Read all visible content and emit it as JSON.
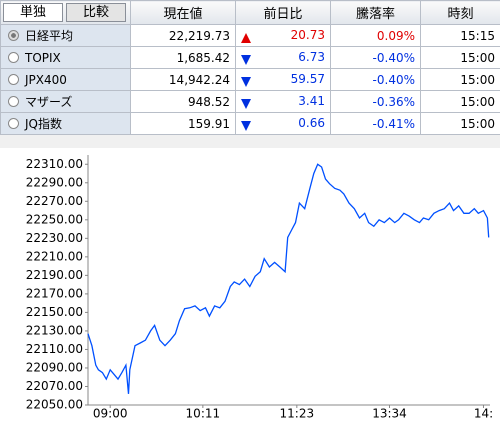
{
  "table": {
    "tabs": [
      "単独",
      "比較"
    ],
    "columns": [
      "現在値",
      "前日比",
      "騰落率",
      "時刻"
    ],
    "rows": [
      {
        "name": "日経平均",
        "price": "22,219.73",
        "trend": "up",
        "change": "20.73",
        "rate": "0.09%",
        "time": "15:15"
      },
      {
        "name": "TOPIX",
        "price": "1,685.42",
        "trend": "down",
        "change": "6.73",
        "rate": "-0.40%",
        "time": "15:00"
      },
      {
        "name": "JPX400",
        "price": "14,942.24",
        "trend": "down",
        "change": "59.57",
        "rate": "-0.40%",
        "time": "15:00"
      },
      {
        "name": "マザーズ",
        "price": "948.52",
        "trend": "down",
        "change": "3.41",
        "rate": "-0.36%",
        "time": "15:00"
      },
      {
        "name": "JQ指数",
        "price": "159.91",
        "trend": "down",
        "change": "0.66",
        "rate": "-0.41%",
        "time": "15:00"
      }
    ]
  },
  "chart_data": {
    "type": "line",
    "x": [
      -17,
      -14,
      -11,
      -9,
      -6,
      -3,
      0,
      3,
      6,
      9,
      12,
      14,
      15,
      19,
      23,
      27,
      31,
      34,
      38,
      42,
      46,
      50,
      53,
      57,
      61,
      65,
      69,
      73,
      76,
      80,
      84,
      88,
      92,
      95,
      99,
      103,
      107,
      111,
      115,
      118,
      122,
      126,
      130,
      134,
      136,
      139,
      142,
      145,
      149,
      153,
      156,
      159,
      162,
      165,
      168,
      172,
      176,
      179,
      183,
      187,
      191,
      195,
      198,
      202,
      206,
      210,
      214,
      218,
      221,
      225,
      229,
      233,
      237,
      240,
      244,
      248,
      252,
      256,
      260,
      263,
      267,
      271,
      275,
      279,
      282,
      286,
      289,
      290
    ],
    "series": [
      {
        "color": "#0050ff",
        "values": [
          22127,
          22114,
          22093,
          22088,
          22085,
          22078,
          22088,
          22083,
          22078,
          22085,
          22093,
          22062,
          22088,
          22114,
          22117,
          22120,
          22130,
          22136,
          22120,
          22114,
          22120,
          22127,
          22141,
          22154,
          22155,
          22157,
          22152,
          22155,
          22146,
          22157,
          22155,
          22162,
          22178,
          22183,
          22180,
          22186,
          22178,
          22189,
          22194,
          22208,
          22199,
          22204,
          22199,
          22194,
          22231,
          22239,
          22247,
          22268,
          22262,
          22284,
          22300,
          22310,
          22307,
          22294,
          22289,
          22284,
          22282,
          22278,
          22268,
          22262,
          22252,
          22257,
          22247,
          22243,
          22250,
          22247,
          22252,
          22247,
          22250,
          22257,
          22254,
          22250,
          22247,
          22252,
          22250,
          22257,
          22260,
          22262,
          22268,
          22260,
          22265,
          22257,
          22257,
          22262,
          22257,
          22260,
          22252,
          22231
        ]
      }
    ],
    "xlim": [
      -17,
      291
    ],
    "xticks": [
      {
        "value": 0,
        "label": "09:00"
      },
      {
        "value": 71,
        "label": "10:11"
      },
      {
        "value": 143,
        "label": "11:23"
      },
      {
        "value": 214,
        "label": "13:34"
      },
      {
        "value": 286,
        "label": "14:"
      }
    ],
    "ylim": [
      22050,
      22320
    ],
    "yticks": [
      {
        "value": 22050,
        "label": "22050.00"
      },
      {
        "value": 22070,
        "label": "22070.00"
      },
      {
        "value": 22090,
        "label": "22090.00"
      },
      {
        "value": 22110,
        "label": "22110.00"
      },
      {
        "value": 22130,
        "label": "22130.00"
      },
      {
        "value": 22150,
        "label": "22150.00"
      },
      {
        "value": 22170,
        "label": "22170.00"
      },
      {
        "value": 22190,
        "label": "22190.00"
      },
      {
        "value": 22210,
        "label": "22210.00"
      },
      {
        "value": 22230,
        "label": "22230.00"
      },
      {
        "value": 22250,
        "label": "22250.00"
      },
      {
        "value": 22270,
        "label": "22270.00"
      },
      {
        "value": 22290,
        "label": "22290.00"
      },
      {
        "value": 22310,
        "label": "22310.00"
      }
    ],
    "grid": false
  }
}
